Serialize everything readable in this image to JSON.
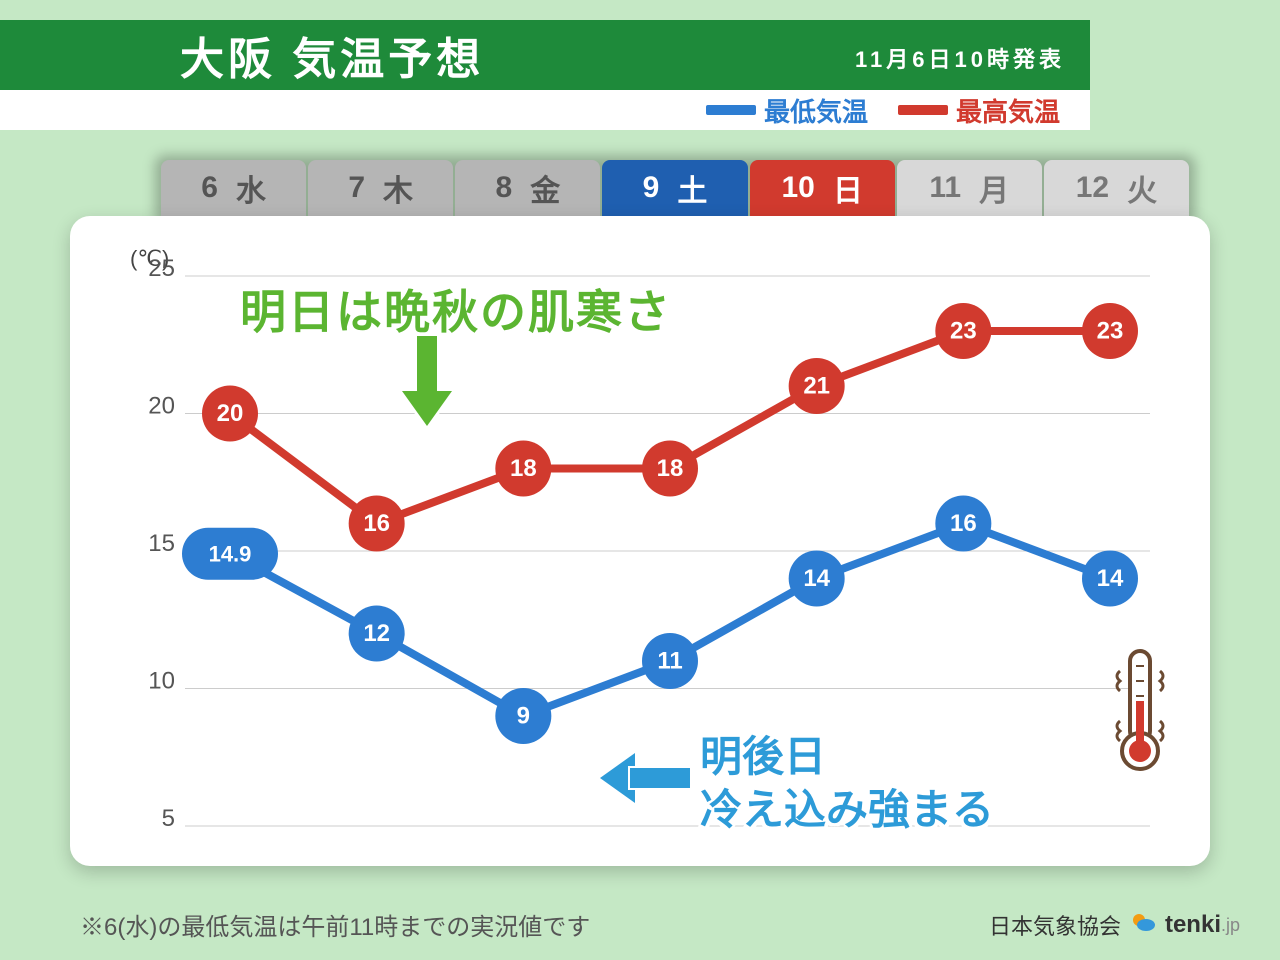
{
  "header": {
    "title": "大阪  気温予想",
    "timestamp": "11月6日10時発表",
    "legend_low": "最低気温",
    "legend_high": "最高気温"
  },
  "chart": {
    "type": "line",
    "unit": "(℃)",
    "ylim": [
      5,
      25
    ],
    "yticks": [
      5,
      10,
      15,
      20,
      25
    ],
    "days": [
      {
        "num": "6",
        "dow": "水",
        "style": "gray"
      },
      {
        "num": "7",
        "dow": "木",
        "style": "gray"
      },
      {
        "num": "8",
        "dow": "金",
        "style": "gray"
      },
      {
        "num": "9",
        "dow": "土",
        "style": "sat"
      },
      {
        "num": "10",
        "dow": "日",
        "style": "sun"
      },
      {
        "num": "11",
        "dow": "月",
        "style": "light"
      },
      {
        "num": "12",
        "dow": "火",
        "style": "light"
      }
    ],
    "series_high": {
      "color": "#d13a2e",
      "values": [
        20,
        16,
        18,
        18,
        21,
        23,
        23
      ],
      "labels": [
        "20",
        "16",
        "18",
        "18",
        "21",
        "23",
        "23"
      ]
    },
    "series_low": {
      "color": "#2d7dd2",
      "values": [
        14.9,
        12,
        9,
        11,
        14,
        16,
        14
      ],
      "labels": [
        "14.9",
        "12",
        "9",
        "11",
        "14",
        "16",
        "14"
      ]
    },
    "marker_radius": 28,
    "line_width": 8,
    "background_color": "#ffffff",
    "grid_color": "#cccccc"
  },
  "annotations": {
    "green": "明日は晩秋の肌寒さ",
    "blue_line1": "明後日",
    "blue_line2": "冷え込み強まる"
  },
  "footnote": "※6(水)の最低気温は午前11時までの実況値です",
  "credit_org": "日本気象協会",
  "credit_site": "tenki",
  "credit_suffix": ".jp"
}
